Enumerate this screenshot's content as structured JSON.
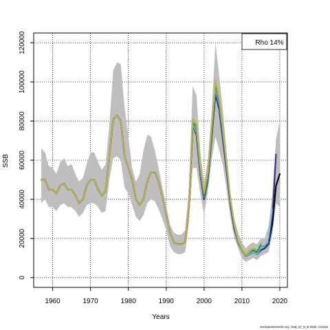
{
  "chart_data": {
    "type": "line",
    "xlabel": "Years",
    "ylabel": "SSB",
    "xlim": [
      1955,
      2022
    ],
    "ylim": [
      -5000,
      125000
    ],
    "xticks": [
      1960,
      1970,
      1980,
      1990,
      2000,
      2010,
      2020
    ],
    "yticks": [
      0,
      20000,
      40000,
      60000,
      80000,
      100000,
      120000
    ],
    "grid": true,
    "legend": {
      "text": "Rho 14%",
      "placement": "top-right"
    },
    "footer": "stockassessment.org, Had_27_5_B 2020, r13416",
    "confidence_band": {
      "color": "#bebebe",
      "x": [
        1957,
        1958,
        1959,
        1960,
        1961,
        1962,
        1963,
        1964,
        1965,
        1966,
        1967,
        1968,
        1969,
        1970,
        1971,
        1972,
        1973,
        1974,
        1975,
        1976,
        1977,
        1978,
        1979,
        1980,
        1981,
        1982,
        1983,
        1984,
        1985,
        1986,
        1987,
        1988,
        1989,
        1990,
        1991,
        1992,
        1993,
        1994,
        1995,
        1996,
        1997,
        1998,
        1999,
        2000,
        2001,
        2002,
        2003,
        2004,
        2005,
        2006,
        2007,
        2008,
        2009,
        2010,
        2011,
        2012,
        2013,
        2014,
        2015,
        2016,
        2017,
        2018,
        2019,
        2020
      ],
      "upper": [
        66000,
        64000,
        57000,
        56000,
        53000,
        59000,
        61000,
        57000,
        58000,
        53000,
        49000,
        51000,
        58000,
        64000,
        64000,
        59000,
        55000,
        58000,
        78000,
        106000,
        110000,
        109000,
        87000,
        72000,
        56000,
        49000,
        53000,
        65000,
        73000,
        72000,
        65000,
        56000,
        46000,
        37000,
        27000,
        23000,
        22000,
        22000,
        24000,
        45000,
        98000,
        93000,
        65000,
        48000,
        60000,
        85000,
        120000,
        103000,
        85000,
        63000,
        43000,
        30000,
        23000,
        18000,
        15000,
        17000,
        18000,
        17000,
        20000,
        20000,
        26000,
        42000,
        71000,
        80000
      ],
      "lower": [
        38000,
        40000,
        36000,
        36000,
        34000,
        37000,
        38000,
        36000,
        36000,
        34000,
        31000,
        33000,
        37000,
        38000,
        38000,
        36000,
        33000,
        34000,
        50000,
        61000,
        62000,
        60000,
        46000,
        43000,
        37000,
        31000,
        29000,
        32000,
        38000,
        40000,
        39000,
        35000,
        30000,
        24000,
        16000,
        13000,
        12000,
        12000,
        13000,
        28000,
        56000,
        56000,
        43000,
        32000,
        44000,
        60000,
        72000,
        65000,
        57000,
        44000,
        30000,
        20000,
        15000,
        10000,
        8000,
        9000,
        10000,
        9000,
        11000,
        12000,
        13000,
        22000,
        38000,
        36000
      ]
    },
    "x": [
      1957,
      1958,
      1959,
      1960,
      1961,
      1962,
      1963,
      1964,
      1965,
      1966,
      1967,
      1968,
      1969,
      1970,
      1971,
      1972,
      1973,
      1974,
      1975,
      1976,
      1977,
      1978,
      1979,
      1980,
      1981,
      1982,
      1983,
      1984,
      1985,
      1986,
      1987,
      1988,
      1989,
      1990,
      1991,
      1992,
      1993,
      1994,
      1995,
      1996,
      1997,
      1998,
      1999,
      2000,
      2001,
      2002,
      2003,
      2004,
      2005,
      2006,
      2007,
      2008,
      2009,
      2010,
      2011,
      2012,
      2013,
      2014,
      2015,
      2016,
      2017,
      2018,
      2019,
      2020
    ],
    "series": [
      {
        "color": "#000000",
        "dashed": false,
        "width": 2.2,
        "values": [
          50000,
          50000,
          45000,
          45000,
          43000,
          47000,
          48000,
          45000,
          45000,
          42000,
          38000,
          40000,
          47000,
          50000,
          50000,
          45000,
          42000,
          44000,
          62000,
          81000,
          83000,
          80000,
          62000,
          56000,
          50000,
          40000,
          37000,
          40000,
          49000,
          54000,
          54000,
          49000,
          41000,
          32000,
          23000,
          18000,
          17000,
          17000,
          18000,
          37000,
          78000,
          73000,
          53000,
          40000,
          50000,
          72000,
          94000,
          86000,
          70000,
          54000,
          37000,
          25000,
          18000,
          14000,
          11000,
          12000,
          13000,
          12000,
          14000,
          15000,
          17000,
          27000,
          47000,
          53000
        ]
      },
      {
        "color": "#2e2e8f",
        "dashed": false,
        "width": 2,
        "values": [
          50000,
          50000,
          45000,
          45000,
          43000,
          47000,
          48000,
          45000,
          45000,
          42000,
          38000,
          40000,
          47000,
          50000,
          50000,
          45000,
          42000,
          44000,
          62000,
          81000,
          83000,
          80000,
          62000,
          56000,
          50000,
          40000,
          37000,
          40000,
          49000,
          54000,
          54000,
          49000,
          41000,
          32000,
          23000,
          18000,
          17000,
          17000,
          18000,
          37000,
          78000,
          73000,
          53000,
          40000,
          50000,
          72000,
          94000,
          86000,
          70000,
          54000,
          37000,
          25000,
          18000,
          14000,
          11000,
          12000,
          13000,
          12000,
          14000,
          15000,
          17000,
          30000,
          63000,
          null
        ]
      },
      {
        "color": "#6ec8e0",
        "dashed": false,
        "width": 1.6,
        "values": [
          50000,
          50000,
          45000,
          45000,
          43000,
          47000,
          48000,
          45000,
          45000,
          42000,
          38000,
          40000,
          47000,
          50000,
          50000,
          45000,
          42000,
          44000,
          62000,
          81000,
          83000,
          80000,
          62000,
          56000,
          50000,
          40000,
          37000,
          40000,
          49000,
          54000,
          54000,
          49000,
          41000,
          32000,
          23000,
          18000,
          17000,
          17000,
          18000,
          37000,
          78000,
          74000,
          54000,
          41000,
          51000,
          73000,
          96000,
          88000,
          72000,
          55000,
          38000,
          26000,
          18000,
          14000,
          11000,
          12000,
          13000,
          12000,
          15000,
          16000,
          20000,
          35000,
          null,
          null
        ]
      },
      {
        "color": "#3a9e8a",
        "dashed": false,
        "width": 1.6,
        "values": [
          50000,
          50000,
          45000,
          45000,
          43000,
          47000,
          48000,
          45000,
          45000,
          42000,
          38000,
          40000,
          47000,
          50000,
          50000,
          45000,
          42000,
          44000,
          62000,
          81000,
          83000,
          80000,
          62000,
          56000,
          50000,
          40000,
          37000,
          40000,
          49000,
          54000,
          54000,
          49000,
          41000,
          32000,
          23000,
          18000,
          17000,
          17000,
          18000,
          37000,
          79000,
          75000,
          55000,
          41000,
          52000,
          74000,
          98000,
          89000,
          73000,
          56000,
          38000,
          26000,
          18000,
          14000,
          11000,
          13000,
          14000,
          13000,
          16000,
          16000,
          18000,
          null,
          null,
          null
        ]
      },
      {
        "color": "#2f8a3c",
        "dashed": false,
        "width": 1.8,
        "values": [
          50000,
          50000,
          45000,
          45000,
          43000,
          47000,
          48000,
          45000,
          45000,
          42000,
          38000,
          40000,
          47000,
          50000,
          50000,
          45000,
          42000,
          44000,
          62000,
          81000,
          83000,
          80000,
          62000,
          56000,
          50000,
          40000,
          37000,
          40000,
          49000,
          54000,
          54000,
          49000,
          41000,
          32000,
          23000,
          18000,
          17000,
          17000,
          18000,
          37000,
          80000,
          77000,
          56000,
          42000,
          53000,
          75000,
          99000,
          90000,
          74000,
          56000,
          39000,
          27000,
          19000,
          14000,
          11000,
          13000,
          14000,
          13000,
          17000,
          null,
          null,
          null,
          null,
          null
        ]
      },
      {
        "color": "#7cbf45",
        "dashed": false,
        "width": 1.8,
        "values": [
          50000,
          50000,
          45000,
          45000,
          43000,
          47000,
          48000,
          45000,
          45000,
          42000,
          38000,
          40000,
          47000,
          50000,
          50000,
          45000,
          42000,
          44000,
          62000,
          81000,
          83000,
          80000,
          62000,
          56000,
          50000,
          40000,
          37000,
          40000,
          49000,
          54000,
          54000,
          49000,
          41000,
          32000,
          23000,
          18000,
          17000,
          17000,
          18000,
          37000,
          80000,
          78000,
          57000,
          43000,
          54000,
          77000,
          100000,
          91000,
          75000,
          57000,
          39000,
          27000,
          19000,
          14000,
          11000,
          13000,
          15000,
          14000,
          null,
          null,
          null,
          null,
          null,
          null
        ]
      },
      {
        "color": "#c8b04a",
        "dashed": false,
        "width": 1.8,
        "values": [
          50000,
          50000,
          45000,
          45000,
          43000,
          47000,
          48000,
          45000,
          45000,
          42000,
          38000,
          40000,
          47000,
          50000,
          50000,
          45000,
          42000,
          44000,
          62000,
          81000,
          83000,
          80000,
          62000,
          56000,
          50000,
          40000,
          37000,
          40000,
          49000,
          54000,
          54000,
          49000,
          41000,
          32000,
          23000,
          18000,
          17000,
          17000,
          18000,
          38000,
          81000,
          79000,
          58000,
          44000,
          55000,
          78000,
          101000,
          92000,
          76000,
          58000,
          40000,
          27000,
          19000,
          15000,
          12000,
          14000,
          15000,
          null,
          null,
          null,
          null,
          null,
          null,
          null
        ]
      },
      {
        "color": "#000000",
        "dashed": true,
        "width": 1.4,
        "values": [
          null,
          null,
          null,
          null,
          null,
          null,
          null,
          null,
          null,
          null,
          null,
          null,
          null,
          null,
          null,
          null,
          null,
          null,
          null,
          null,
          null,
          null,
          null,
          null,
          null,
          null,
          null,
          null,
          null,
          null,
          null,
          null,
          null,
          null,
          null,
          null,
          null,
          null,
          null,
          null,
          null,
          null,
          null,
          null,
          null,
          null,
          null,
          null,
          null,
          null,
          null,
          null,
          null,
          null,
          null,
          null,
          null,
          null,
          null,
          null,
          null,
          27000,
          47000,
          53000
        ]
      }
    ]
  }
}
